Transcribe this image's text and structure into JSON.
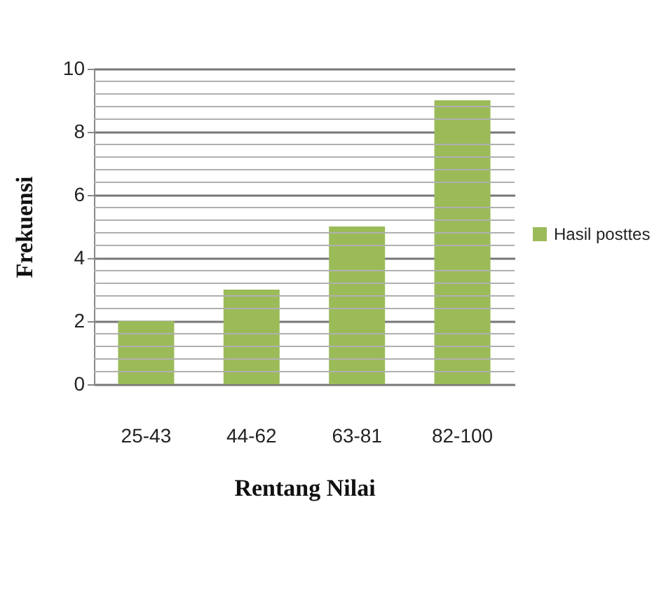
{
  "chart_data": {
    "type": "bar",
    "xlabel": "Rentang Nilai",
    "ylabel": "Frekuensi",
    "categories": [
      "25-43",
      "44-62",
      "63-81",
      "82-100"
    ],
    "series": [
      {
        "name": "Hasil posttes",
        "color": "#9bbb59",
        "values": [
          2,
          3,
          5,
          9
        ]
      }
    ],
    "ylim": [
      0,
      10
    ],
    "yticks": [
      0,
      2,
      4,
      6,
      8,
      10
    ],
    "grid": "y",
    "legend": "right"
  }
}
